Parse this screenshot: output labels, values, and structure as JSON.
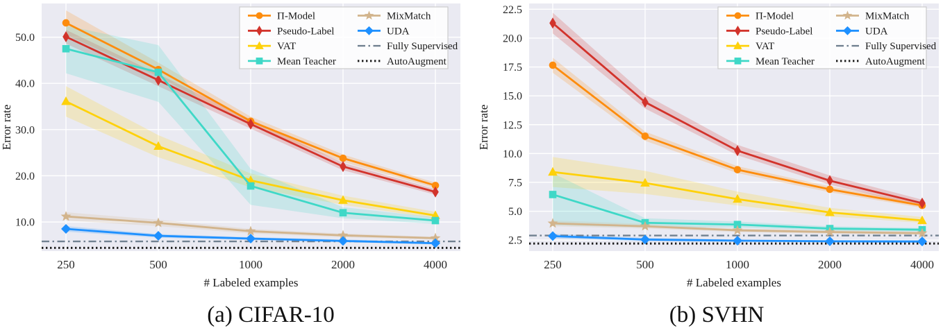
{
  "figure": {
    "background": "#ffffff",
    "plot_background": "#eaeaf2",
    "grid_color": "#ffffff",
    "text_color": "#262626",
    "legend_background": "rgba(255,255,255,0.85)",
    "legend_border": "#cccccc"
  },
  "chart_data": [
    {
      "type": "line",
      "caption": "(a) CIFAR-10",
      "xlabel": "# Labeled examples",
      "ylabel": "Error rate",
      "x_scale": "log2",
      "x": [
        250,
        500,
        1000,
        2000,
        4000
      ],
      "x_tick_labels": [
        "250",
        "500",
        "1000",
        "2000",
        "4000"
      ],
      "y_ticks": [
        10,
        20,
        30,
        40,
        50
      ],
      "y_tick_labels": [
        "10.0",
        "20.0",
        "30.0",
        "40.0",
        "50.0"
      ],
      "ylim": [
        3.7,
        57.3
      ],
      "grid": true,
      "legend_position": "upper right",
      "series": [
        {
          "name": "Π-Model",
          "color": "#fd8c0d",
          "marker": "circle",
          "values": [
            53.1,
            43.0,
            31.8,
            23.8,
            17.9
          ],
          "band_lo": [
            50.5,
            41.5,
            30.8,
            23.0,
            17.3
          ],
          "band_hi": [
            55.8,
            44.5,
            32.8,
            24.6,
            18.5
          ]
        },
        {
          "name": "Pseudo-Label",
          "color": "#d2332b",
          "marker": "thin-diamond",
          "values": [
            50.1,
            40.7,
            31.2,
            22.0,
            16.5
          ],
          "band_lo": [
            48.6,
            39.4,
            30.2,
            21.2,
            15.9
          ],
          "band_hi": [
            51.6,
            42.0,
            32.2,
            22.8,
            17.1
          ]
        },
        {
          "name": "VAT",
          "color": "#fed10a",
          "marker": "triangle",
          "values": [
            36.1,
            26.4,
            19.0,
            14.7,
            11.4
          ],
          "band_lo": [
            32.8,
            24.0,
            17.5,
            13.7,
            10.8
          ],
          "band_hi": [
            39.4,
            28.8,
            20.5,
            15.7,
            12.2
          ]
        },
        {
          "name": "Mean Teacher",
          "color": "#3fd8c7",
          "marker": "square",
          "values": [
            47.5,
            42.4,
            17.8,
            12.0,
            10.3
          ],
          "band_lo": [
            42.2,
            36.0,
            13.7,
            10.8,
            9.6
          ],
          "band_hi": [
            52.5,
            48.3,
            21.5,
            13.2,
            11.0
          ]
        },
        {
          "name": "MixMatch",
          "color": "#d2b48c",
          "marker": "star",
          "values": [
            11.2,
            9.8,
            8.0,
            7.1,
            6.5
          ],
          "band_lo": [
            10.3,
            9.1,
            7.5,
            6.7,
            6.2
          ],
          "band_hi": [
            12.1,
            10.5,
            8.5,
            7.5,
            6.8
          ]
        },
        {
          "name": "UDA",
          "color": "#1e90ff",
          "marker": "diamond",
          "values": [
            8.5,
            7.0,
            6.4,
            5.9,
            5.4
          ],
          "band_lo": [
            7.9,
            6.6,
            6.1,
            5.6,
            5.2
          ],
          "band_hi": [
            9.1,
            7.4,
            6.7,
            6.2,
            5.6
          ]
        }
      ],
      "ref_lines": [
        {
          "name": "Fully Supervised",
          "color": "#708090",
          "style": "dashdot",
          "value": 5.8
        },
        {
          "name": "AutoAugment",
          "color": "#1c1c1c",
          "style": "dotted",
          "value": 4.4
        }
      ]
    },
    {
      "type": "line",
      "caption": "(b) SVHN",
      "xlabel": "# Labeled examples",
      "ylabel": "Error rate",
      "x_scale": "log2",
      "x": [
        250,
        500,
        1000,
        2000,
        4000
      ],
      "x_tick_labels": [
        "250",
        "500",
        "1000",
        "2000",
        "4000"
      ],
      "y_ticks": [
        2.5,
        5.0,
        7.5,
        10.0,
        12.5,
        15.0,
        17.5,
        20.0,
        22.5
      ],
      "y_tick_labels": [
        "2.5",
        "5.0",
        "7.5",
        "10.0",
        "12.5",
        "15.0",
        "17.5",
        "20.0",
        "22.5"
      ],
      "ylim": [
        1.55,
        23.0
      ],
      "grid": true,
      "legend_position": "upper right",
      "series": [
        {
          "name": "Π-Model",
          "color": "#fd8c0d",
          "marker": "circle",
          "values": [
            17.65,
            11.5,
            8.6,
            6.9,
            5.5
          ],
          "band_lo": [
            17.0,
            11.1,
            8.3,
            6.65,
            5.3
          ],
          "band_hi": [
            18.3,
            11.9,
            8.9,
            7.15,
            5.7
          ]
        },
        {
          "name": "Pseudo-Label",
          "color": "#d2332b",
          "marker": "thin-diamond",
          "values": [
            21.3,
            14.45,
            10.25,
            7.65,
            5.7
          ],
          "band_lo": [
            20.4,
            13.9,
            9.85,
            7.3,
            5.4
          ],
          "band_hi": [
            22.2,
            15.1,
            10.75,
            8.1,
            6.0
          ]
        },
        {
          "name": "VAT",
          "color": "#fed10a",
          "marker": "triangle",
          "values": [
            8.4,
            7.45,
            6.05,
            4.9,
            4.2
          ],
          "band_lo": [
            7.1,
            6.5,
            5.5,
            4.55,
            4.0
          ],
          "band_hi": [
            9.7,
            8.5,
            6.7,
            5.3,
            4.5
          ]
        },
        {
          "name": "Mean Teacher",
          "color": "#3fd8c7",
          "marker": "square",
          "values": [
            6.45,
            4.0,
            3.85,
            3.5,
            3.4
          ],
          "band_lo": [
            3.8,
            3.6,
            3.6,
            3.3,
            3.25
          ],
          "band_hi": [
            8.3,
            4.4,
            4.1,
            3.7,
            3.55
          ]
        },
        {
          "name": "MixMatch",
          "color": "#d2b48c",
          "marker": "star",
          "values": [
            3.95,
            3.7,
            3.35,
            3.2,
            3.1
          ],
          "band_lo": [
            3.7,
            3.5,
            3.2,
            3.05,
            2.95
          ],
          "band_hi": [
            4.2,
            3.9,
            3.5,
            3.35,
            3.25
          ]
        },
        {
          "name": "UDA",
          "color": "#1e90ff",
          "marker": "diamond",
          "values": [
            2.85,
            2.55,
            2.45,
            2.4,
            2.38
          ],
          "band_lo": [
            2.65,
            2.4,
            2.35,
            2.3,
            2.26
          ],
          "band_hi": [
            3.05,
            2.7,
            2.55,
            2.5,
            2.5
          ]
        }
      ],
      "ref_lines": [
        {
          "name": "Fully Supervised",
          "color": "#708090",
          "style": "dashdot",
          "value": 2.9
        },
        {
          "name": "AutoAugment",
          "color": "#1c1c1c",
          "style": "dotted",
          "value": 2.2
        }
      ]
    }
  ]
}
